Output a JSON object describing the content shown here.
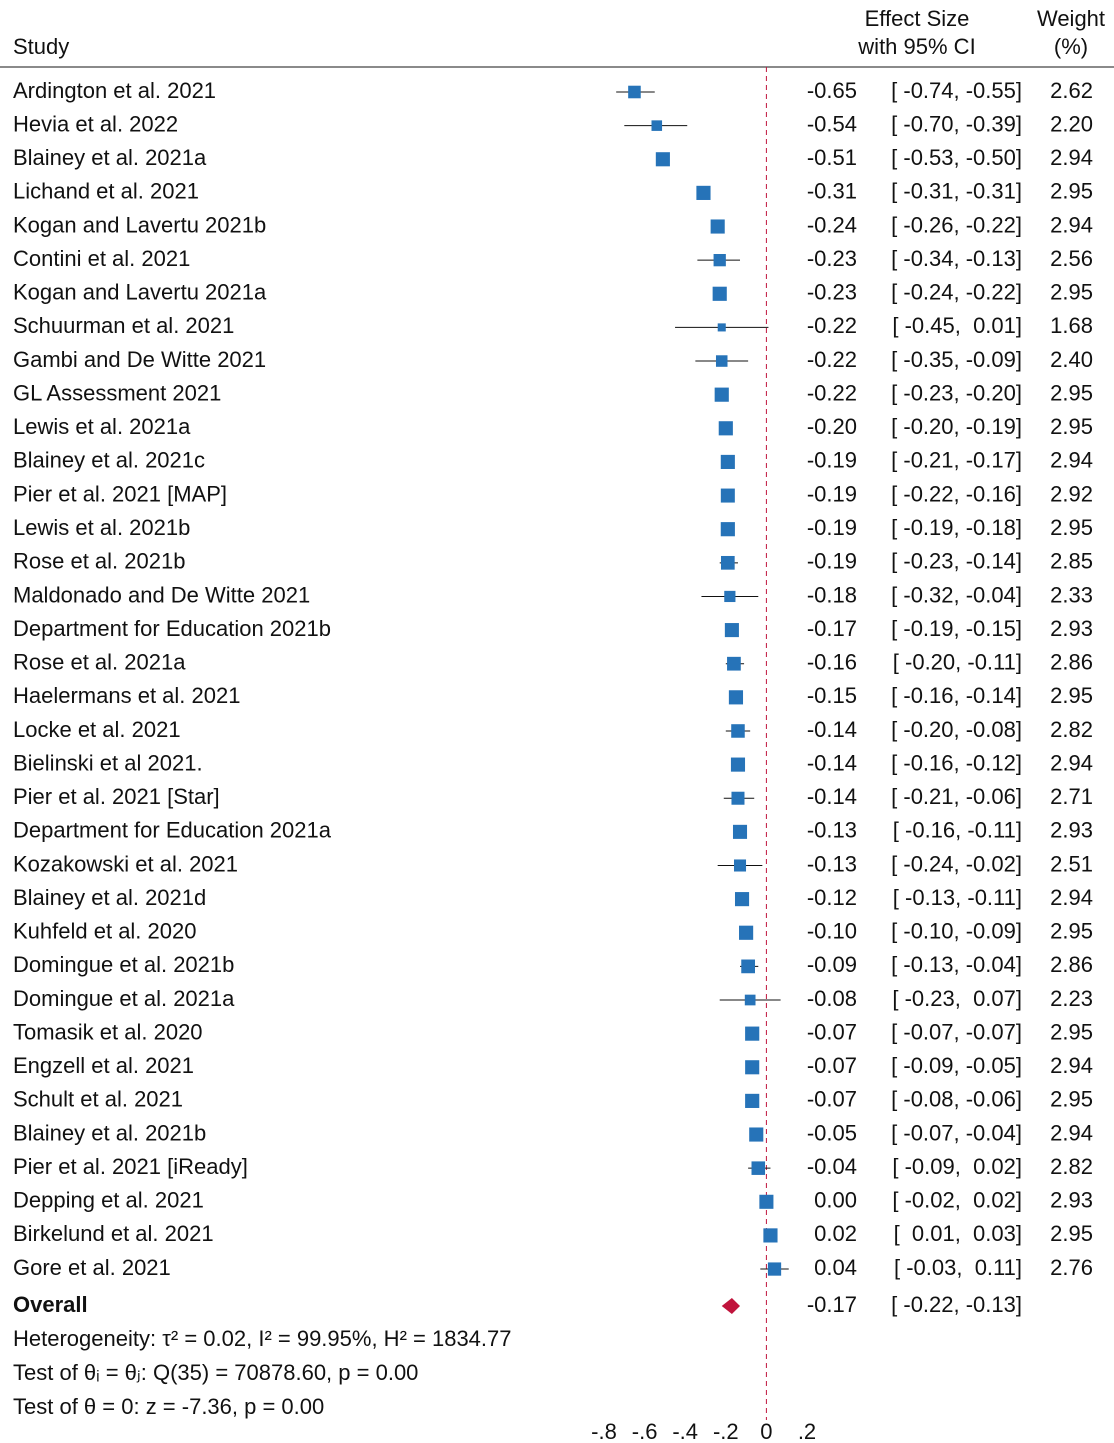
{
  "chart_data": {
    "type": "forest",
    "headers": {
      "study": "Study",
      "effect": [
        "Effect Size",
        "with 95% CI"
      ],
      "weight": [
        "Weight",
        "(%)"
      ]
    },
    "categories": [
      "Ardington et al. 2021",
      "Hevia et al. 2022",
      "Blainey et al. 2021a",
      "Lichand et al. 2021",
      "Kogan and Lavertu 2021b",
      "Contini et al. 2021",
      "Kogan and Lavertu 2021a",
      "Schuurman et al. 2021",
      "Gambi and De Witte 2021",
      "GL Assessment 2021",
      "Lewis et al. 2021a",
      "Blainey et al. 2021c",
      "Pier et al. 2021 [MAP]",
      "Lewis et al. 2021b",
      "Rose et al. 2021b",
      "Maldonado and De Witte 2021",
      "Department for Education 2021b",
      "Rose et al. 2021a",
      "Haelermans et al. 2021",
      "Locke et al. 2021",
      "Bielinski et al 2021.",
      "Pier et al. 2021 [Star]",
      "Department for Education 2021a",
      "Kozakowski et al. 2021",
      "Blainey et al. 2021d",
      "Kuhfeld et al. 2020",
      "Domingue et al. 2021b",
      "Domingue et al. 2021a",
      "Tomasik et al. 2020",
      "Engzell et al. 2021",
      "Schult et al. 2021",
      "Blainey et al. 2021b",
      "Pier et al. 2021 [iReady]",
      "Depping et al. 2021",
      "Birkelund et al. 2021",
      "Gore et al. 2021"
    ],
    "values": [
      -0.65,
      -0.54,
      -0.51,
      -0.31,
      -0.24,
      -0.23,
      -0.23,
      -0.22,
      -0.22,
      -0.22,
      -0.2,
      -0.19,
      -0.19,
      -0.19,
      -0.19,
      -0.18,
      -0.17,
      -0.16,
      -0.15,
      -0.14,
      -0.14,
      -0.14,
      -0.13,
      -0.13,
      -0.12,
      -0.1,
      -0.09,
      -0.08,
      -0.07,
      -0.07,
      -0.07,
      -0.05,
      -0.04,
      0,
      0.02,
      0.04
    ],
    "value_labels": [
      "-0.65",
      "-0.54",
      "-0.51",
      "-0.31",
      "-0.24",
      "-0.23",
      "-0.23",
      "-0.22",
      "-0.22",
      "-0.22",
      "-0.20",
      "-0.19",
      "-0.19",
      "-0.19",
      "-0.19",
      "-0.18",
      "-0.17",
      "-0.16",
      "-0.15",
      "-0.14",
      "-0.14",
      "-0.14",
      "-0.13",
      "-0.13",
      "-0.12",
      "-0.10",
      "-0.09",
      "-0.08",
      "-0.07",
      "-0.07",
      "-0.07",
      "-0.05",
      "-0.04",
      "0.00",
      "0.02",
      "0.04"
    ],
    "ci_low": [
      -0.74,
      -0.7,
      -0.53,
      -0.31,
      -0.26,
      -0.34,
      -0.24,
      -0.45,
      -0.35,
      -0.23,
      -0.2,
      -0.21,
      -0.22,
      -0.19,
      -0.23,
      -0.32,
      -0.19,
      -0.2,
      -0.16,
      -0.2,
      -0.16,
      -0.21,
      -0.16,
      -0.24,
      -0.13,
      -0.1,
      -0.13,
      -0.23,
      -0.07,
      -0.09,
      -0.08,
      -0.07,
      -0.09,
      -0.02,
      0.01,
      -0.03
    ],
    "ci_high": [
      -0.55,
      -0.39,
      -0.5,
      -0.31,
      -0.22,
      -0.13,
      -0.22,
      0.01,
      -0.09,
      -0.2,
      -0.19,
      -0.17,
      -0.16,
      -0.18,
      -0.14,
      -0.04,
      -0.15,
      -0.11,
      -0.14,
      -0.08,
      -0.12,
      -0.06,
      -0.11,
      -0.02,
      -0.11,
      -0.09,
      -0.04,
      0.07,
      -0.07,
      -0.05,
      -0.06,
      -0.04,
      0.02,
      0.02,
      0.03,
      0.11
    ],
    "ci_labels": [
      "[ -0.74, -0.55]",
      "[ -0.70, -0.39]",
      "[ -0.53, -0.50]",
      "[ -0.31, -0.31]",
      "[ -0.26, -0.22]",
      "[ -0.34, -0.13]",
      "[ -0.24, -0.22]",
      "[ -0.45,  0.01]",
      "[ -0.35, -0.09]",
      "[ -0.23, -0.20]",
      "[ -0.20, -0.19]",
      "[ -0.21, -0.17]",
      "[ -0.22, -0.16]",
      "[ -0.19, -0.18]",
      "[ -0.23, -0.14]",
      "[ -0.32, -0.04]",
      "[ -0.19, -0.15]",
      "[ -0.20, -0.11]",
      "[ -0.16, -0.14]",
      "[ -0.20, -0.08]",
      "[ -0.16, -0.12]",
      "[ -0.21, -0.06]",
      "[ -0.16, -0.11]",
      "[ -0.24, -0.02]",
      "[ -0.13, -0.11]",
      "[ -0.10, -0.09]",
      "[ -0.13, -0.04]",
      "[ -0.23,  0.07]",
      "[ -0.07, -0.07]",
      "[ -0.09, -0.05]",
      "[ -0.08, -0.06]",
      "[ -0.07, -0.04]",
      "[ -0.09,  0.02]",
      "[ -0.02,  0.02]",
      "[  0.01,  0.03]",
      "[ -0.03,  0.11]"
    ],
    "weights": [
      2.62,
      2.2,
      2.94,
      2.95,
      2.94,
      2.56,
      2.95,
      1.68,
      2.4,
      2.95,
      2.95,
      2.94,
      2.92,
      2.95,
      2.85,
      2.33,
      2.93,
      2.86,
      2.95,
      2.82,
      2.94,
      2.71,
      2.93,
      2.51,
      2.94,
      2.95,
      2.86,
      2.23,
      2.95,
      2.94,
      2.95,
      2.94,
      2.82,
      2.93,
      2.95,
      2.76
    ],
    "weight_labels": [
      "2.62",
      "2.20",
      "2.94",
      "2.95",
      "2.94",
      "2.56",
      "2.95",
      "1.68",
      "2.40",
      "2.95",
      "2.95",
      "2.94",
      "2.92",
      "2.95",
      "2.85",
      "2.33",
      "2.93",
      "2.86",
      "2.95",
      "2.82",
      "2.94",
      "2.71",
      "2.93",
      "2.51",
      "2.94",
      "2.95",
      "2.86",
      "2.23",
      "2.95",
      "2.94",
      "2.95",
      "2.94",
      "2.82",
      "2.93",
      "2.95",
      "2.76"
    ],
    "overall": {
      "label": "Overall",
      "value": -0.17,
      "value_label": "-0.17",
      "ci_low": -0.22,
      "ci_high": -0.13,
      "ci_label": "[ -0.22, -0.13]",
      "color": "#c0143c"
    },
    "notes": [
      "Heterogeneity: τ² = 0.02, I² = 99.95%, H² = 1834.77",
      "Test of θᵢ = θⱼ: Q(35) = 70878.60, p = 0.00",
      "Test of θ = 0: z = -7.36, p = 0.00"
    ],
    "color": "#2673b8",
    "reference_color": "#c0143c",
    "xlim": [
      -0.8,
      0.2
    ],
    "xticks": [
      {
        "value": -0.8,
        "label": "-.8"
      },
      {
        "value": -0.6,
        "label": "-.6"
      },
      {
        "value": -0.4,
        "label": "-.4"
      },
      {
        "value": -0.2,
        "label": "-.2"
      },
      0,
      {
        "value": 0.2,
        "label": ".2"
      }
    ]
  }
}
